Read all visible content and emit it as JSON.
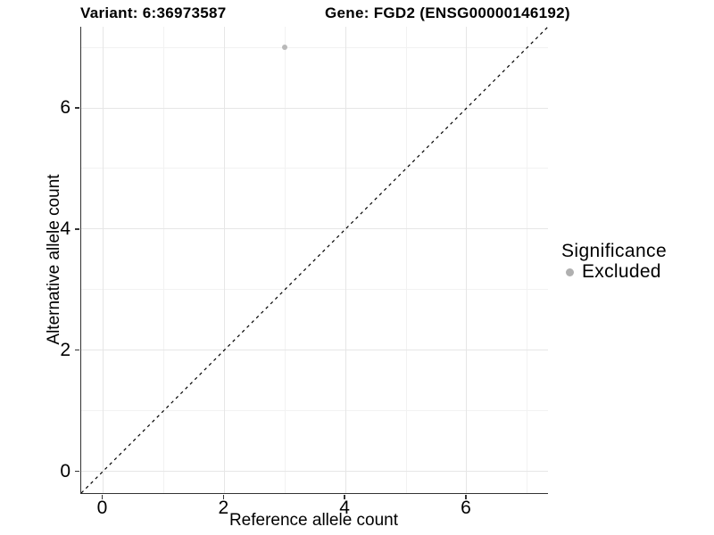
{
  "titles": {
    "left": "Variant: 6:36973587",
    "right": "Gene: FGD2 (ENSG00000146192)"
  },
  "chart_data": {
    "type": "scatter",
    "xlabel": "Reference allele count",
    "ylabel": "Alternative allele count",
    "xlim": [
      -0.36,
      7.34
    ],
    "ylim": [
      -0.36,
      7.34
    ],
    "x_ticks": {
      "major": [
        0,
        2,
        4,
        6
      ],
      "minor": [
        1,
        3,
        5,
        7
      ]
    },
    "y_ticks": {
      "major": [
        0,
        2,
        4,
        6
      ],
      "minor": [
        1,
        3,
        5,
        7
      ]
    },
    "x_tick_labels": [
      "0",
      "2",
      "4",
      "6"
    ],
    "y_tick_labels": [
      "0",
      "2",
      "4",
      "6"
    ],
    "grid": true,
    "identity_line": {
      "style": "dashed",
      "color": "#000000"
    },
    "series": [
      {
        "name": "Excluded",
        "color": "#b9b9b9",
        "point_size": 6,
        "points": [
          [
            3,
            7
          ]
        ]
      }
    ],
    "legend": {
      "title": "Significance",
      "position": "right",
      "entries": [
        {
          "label": "Excluded",
          "color": "#b0b0b0"
        }
      ]
    }
  },
  "colors": {
    "background": "#ffffff",
    "grid_major": "#e6e6e6",
    "grid_minor": "#f2f2f2",
    "axis_line": "#333333"
  }
}
